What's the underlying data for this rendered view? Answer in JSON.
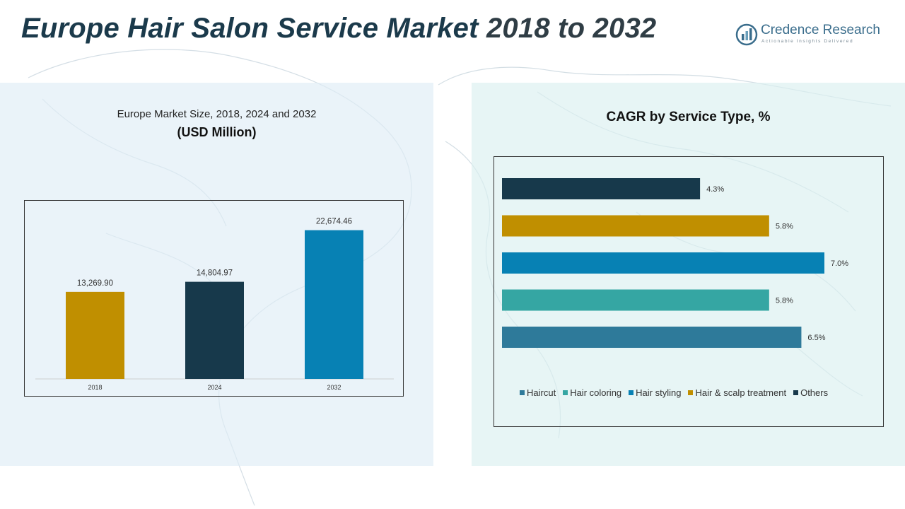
{
  "header": {
    "title_main": "Europe Hair Salon Service Market",
    "title_years": "2018 to 2032"
  },
  "logo": {
    "name": "Credence Research",
    "tagline": "Actionable Insights Delivered"
  },
  "colors": {
    "gold": "#c08f00",
    "navy": "#17394b",
    "blue": "#0781b4",
    "teal": "#35a6a3",
    "steel": "#2e7a9a",
    "title": "#1b3a4b"
  },
  "chart_data": [
    {
      "type": "bar",
      "title": "Europe Market Size, 2018, 2024 and 2032",
      "ylabel": "(USD Million)",
      "categories": [
        "2018",
        "2024",
        "2032"
      ],
      "values": [
        13269.9,
        14804.97,
        22674.46
      ],
      "value_labels": [
        "13,269.90",
        "14,804.97",
        "22,674.46"
      ],
      "bar_colors": [
        "#c08f00",
        "#17394b",
        "#0781b4"
      ],
      "ylim": [
        0,
        25000
      ],
      "grid": false,
      "legend": "none"
    },
    {
      "type": "bar",
      "orientation": "horizontal",
      "title": "CAGR by Service Type, %",
      "categories": [
        "Others",
        "Hair & scalp treatment",
        "Hair styling",
        "Hair coloring",
        "Haircut"
      ],
      "values": [
        4.3,
        5.8,
        7.0,
        5.8,
        6.5
      ],
      "value_labels": [
        "4.3%",
        "5.8%",
        "7.0%",
        "5.8%",
        "6.5%"
      ],
      "bar_colors": [
        "#17394b",
        "#c08f00",
        "#0781b4",
        "#35a6a3",
        "#2e7a9a"
      ],
      "xlim": [
        0,
        7.5
      ],
      "grid": false,
      "legend": "bottom",
      "legend_entries": [
        {
          "label": "Haircut",
          "color": "#2e7a9a"
        },
        {
          "label": "Hair coloring",
          "color": "#35a6a3"
        },
        {
          "label": "Hair styling",
          "color": "#0781b4"
        },
        {
          "label": "Hair & scalp treatment",
          "color": "#c08f00"
        },
        {
          "label": "Others",
          "color": "#17394b"
        }
      ]
    }
  ]
}
